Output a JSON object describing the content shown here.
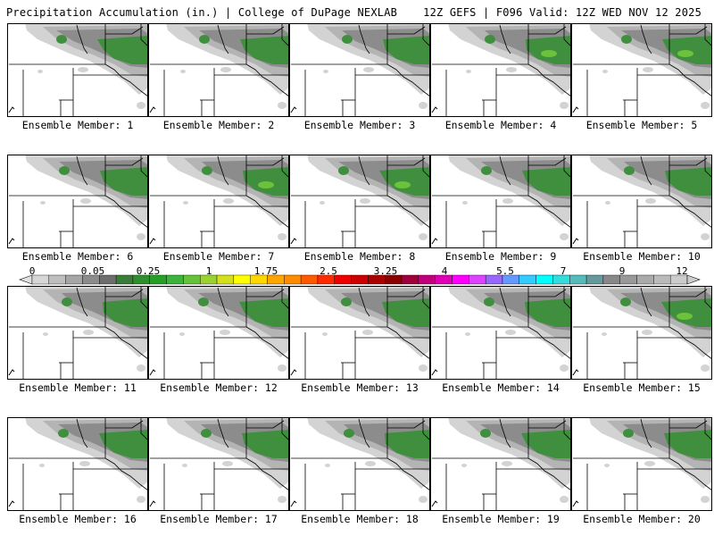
{
  "header": {
    "title_left": "Precipitation Accumulation (in.) | College of DuPage NEXLAB",
    "title_right": "12Z GEFS | F096 Valid: 12Z WED NOV 12 2025"
  },
  "map_meta": {
    "variable": "Precipitation Accumulation",
    "units": "in.",
    "model": "GEFS",
    "forecast_hour": "F096",
    "valid": "12Z WED NOV 12 2025"
  },
  "colorbar": {
    "labels": [
      "0",
      "0.05",
      "0.25",
      "1",
      "1.75",
      "2.5",
      "3.25",
      "4",
      "5.5",
      "7",
      "9",
      "12"
    ],
    "colors": [
      "#d6d6d6",
      "#bfbfbf",
      "#a6a6a6",
      "#8c8c8c",
      "#6e6e6e",
      "#3a7d3a",
      "#2f8f2f",
      "#27a027",
      "#3cb43c",
      "#66c23a",
      "#9ad22f",
      "#d4e01c",
      "#ffff00",
      "#ffd700",
      "#ffa500",
      "#ff8c00",
      "#ff5a00",
      "#ff2a00",
      "#ee0000",
      "#cc0000",
      "#aa0000",
      "#8b0000",
      "#a0003c",
      "#c0007a",
      "#e000b4",
      "#ff00ff",
      "#dd44ff",
      "#9966ff",
      "#6699ff",
      "#33ccff",
      "#00ffff",
      "#33dddd",
      "#55bbbb",
      "#669999",
      "#888888",
      "#999999",
      "#aaaaaa",
      "#bbbbbb",
      "#cccccc"
    ]
  },
  "members": [
    {
      "caption": "Ensemble Member: 1",
      "bright": false
    },
    {
      "caption": "Ensemble Member: 2",
      "bright": false
    },
    {
      "caption": "Ensemble Member: 3",
      "bright": false
    },
    {
      "caption": "Ensemble Member: 4",
      "bright": true
    },
    {
      "caption": "Ensemble Member: 5",
      "bright": true
    },
    {
      "caption": "Ensemble Member: 6",
      "bright": false
    },
    {
      "caption": "Ensemble Member: 7",
      "bright": true
    },
    {
      "caption": "Ensemble Member: 8",
      "bright": true
    },
    {
      "caption": "Ensemble Member: 9",
      "bright": false
    },
    {
      "caption": "Ensemble Member: 10",
      "bright": false
    },
    {
      "caption": "Ensemble Member: 11",
      "bright": false
    },
    {
      "caption": "Ensemble Member: 12",
      "bright": false
    },
    {
      "caption": "Ensemble Member: 13",
      "bright": false
    },
    {
      "caption": "Ensemble Member: 14",
      "bright": false
    },
    {
      "caption": "Ensemble Member: 15",
      "bright": true
    },
    {
      "caption": "Ensemble Member: 16",
      "bright": false
    },
    {
      "caption": "Ensemble Member: 17",
      "bright": false
    },
    {
      "caption": "Ensemble Member: 18",
      "bright": false
    },
    {
      "caption": "Ensemble Member: 19",
      "bright": false
    },
    {
      "caption": "Ensemble Member: 20",
      "bright": false
    }
  ]
}
